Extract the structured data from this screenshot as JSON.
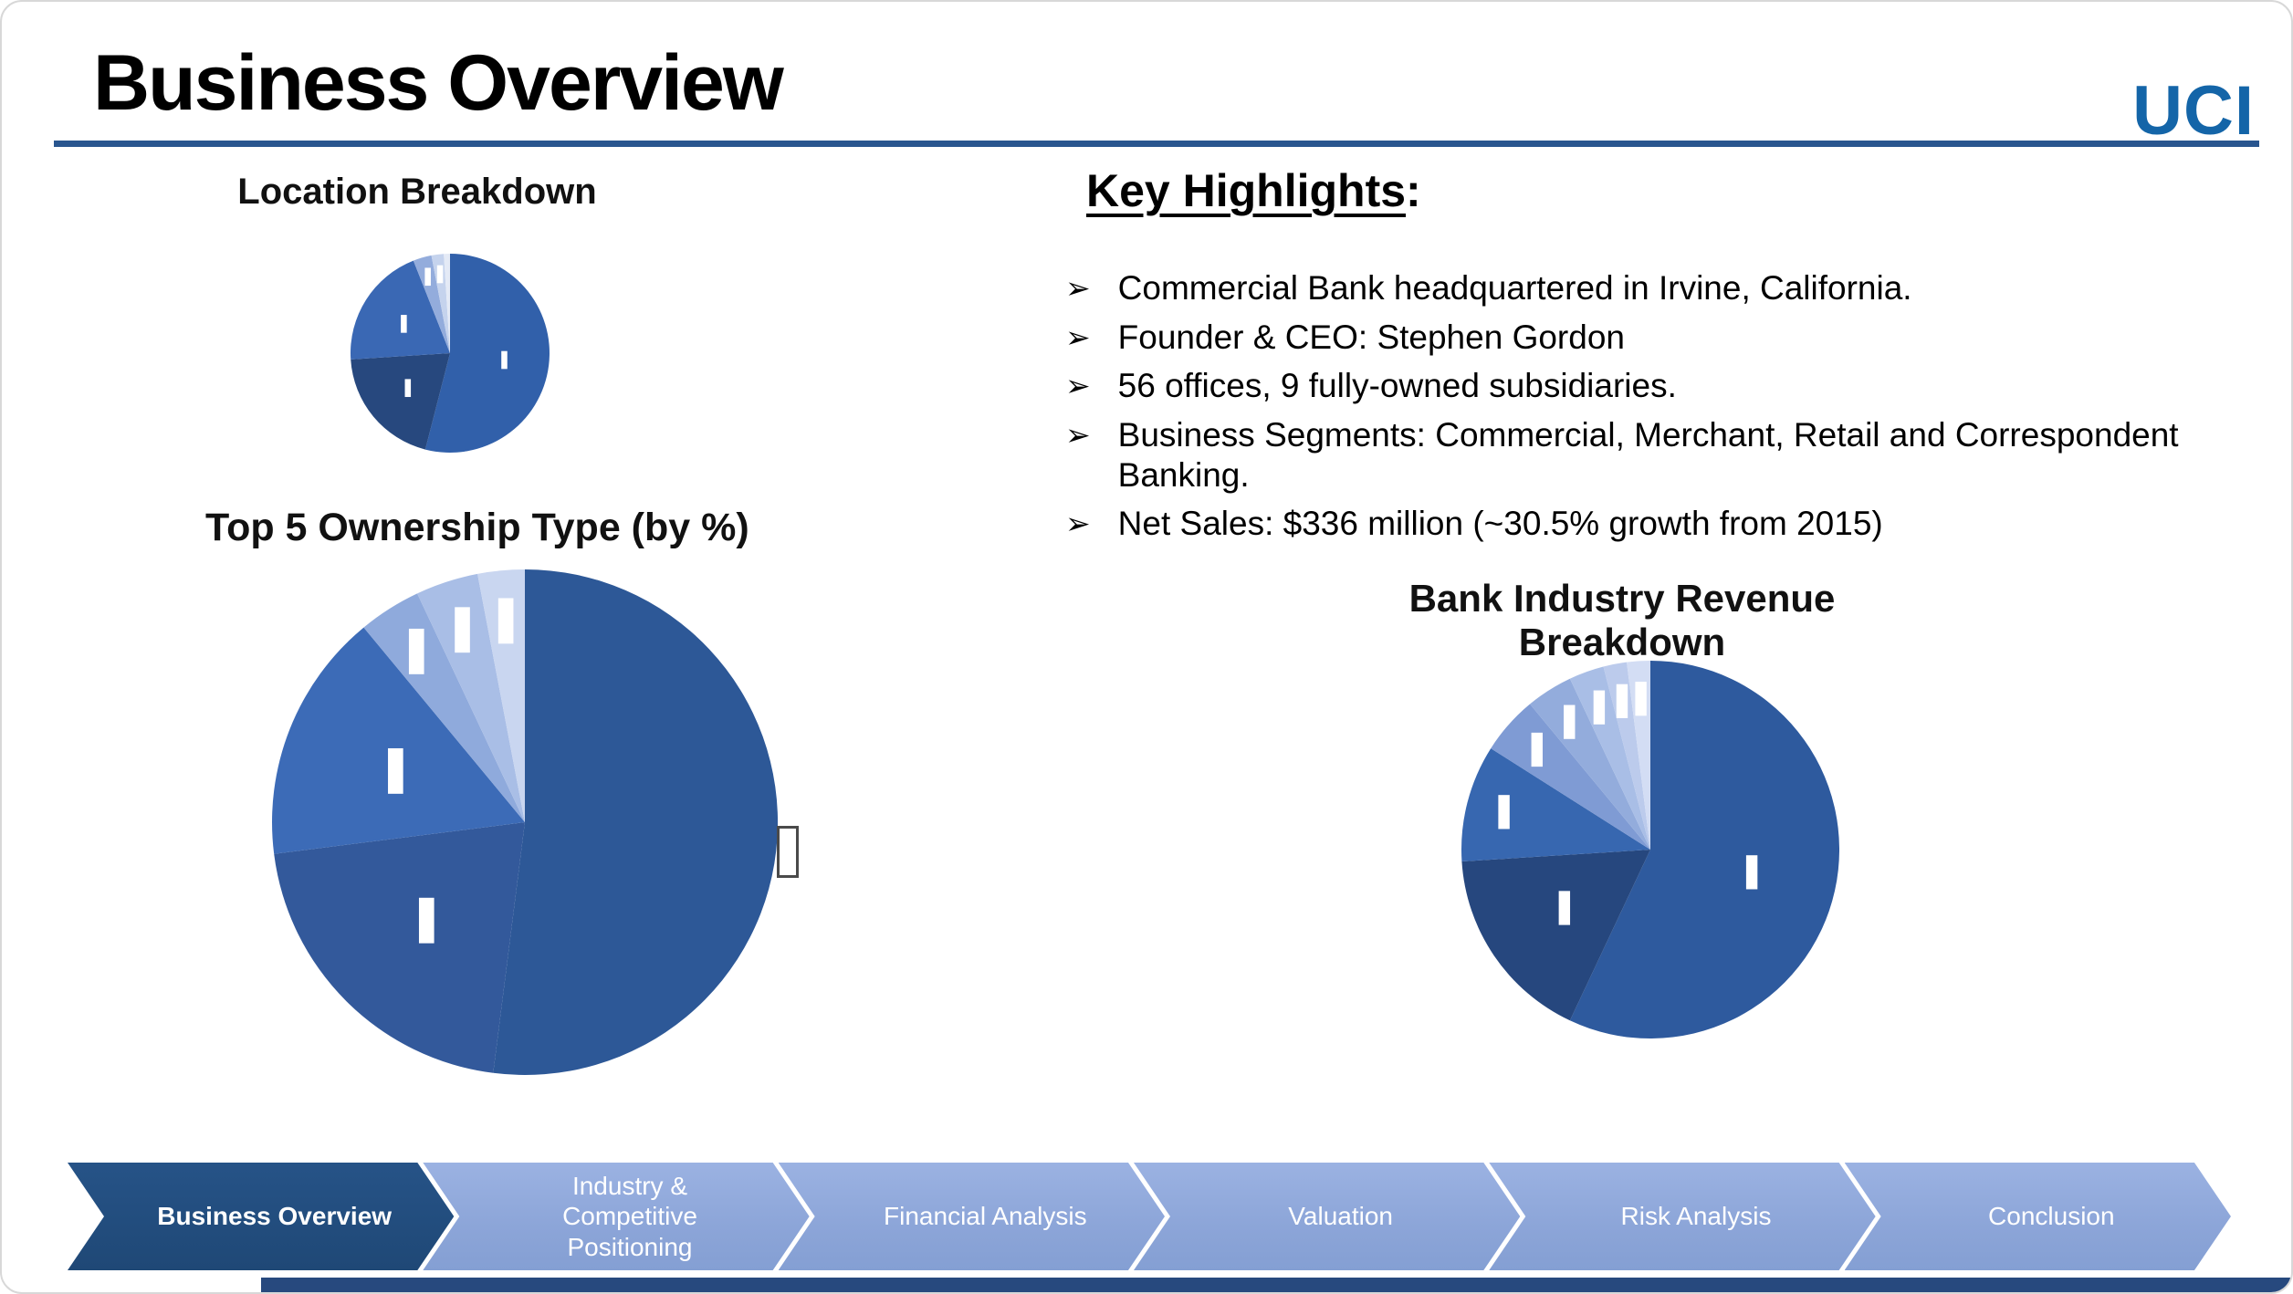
{
  "header": {
    "title": "Business Overview",
    "logo": "UCI"
  },
  "highlights": {
    "title": "Key Highlights",
    "colon": ":",
    "bullet_glyph": "➢",
    "items": [
      "Commercial Bank headquartered in Irvine, California.",
      "Founder & CEO: Stephen Gordon",
      "56 offices, 9 fully-owned subsidiaries.",
      "Business Segments: Commercial, Merchant, Retail and Correspondent Banking.",
      "Net Sales: $336 million (~30.5% growth from 2015)"
    ]
  },
  "nav": {
    "items": [
      {
        "label": "Business Overview",
        "active": true
      },
      {
        "label": "Industry & Competitive Positioning",
        "active": false
      },
      {
        "label": "Financial Analysis",
        "active": false
      },
      {
        "label": "Valuation",
        "active": false
      },
      {
        "label": "Risk Analysis",
        "active": false
      },
      {
        "label": "Conclusion",
        "active": false
      }
    ],
    "active_color": "#1F4876",
    "inactive_color": "#8FAADC",
    "text_color": "#FFFFFF"
  },
  "colors": {
    "accent_rule": "#29568F",
    "logo_blue": "#1465A8",
    "bottom_strip": "#27497E"
  },
  "chart_data": [
    {
      "type": "pie",
      "title": "Location Breakdown",
      "values": [
        54,
        20,
        20,
        3,
        2,
        1
      ],
      "colors": [
        "#3160AA",
        "#27487E",
        "#3A68B4",
        "#93ACDC",
        "#C5D3ED",
        "#E4EAF6"
      ],
      "note": "slice labels too small to read in source"
    },
    {
      "type": "pie",
      "title": "Top 5 Ownership Type (by %)",
      "values": [
        52,
        21,
        16,
        4,
        4,
        3
      ],
      "colors": [
        "#2D5897",
        "#33599B",
        "#3C6BB7",
        "#8FAADC",
        "#A9BEE6",
        "#C9D6F0"
      ],
      "no_marker": [
        0
      ],
      "note": "slice labels too small to read in source"
    },
    {
      "type": "pie",
      "title": "Bank Industry Revenue Breakdown",
      "values": [
        57,
        17,
        10,
        5,
        4,
        3,
        2,
        2
      ],
      "colors": [
        "#2E5A9E",
        "#26477E",
        "#3767B0",
        "#7F9BD4",
        "#93ACDC",
        "#A9BEE6",
        "#BCCBEC",
        "#D3DDF4"
      ],
      "note": "slice labels too small to read in source"
    }
  ]
}
